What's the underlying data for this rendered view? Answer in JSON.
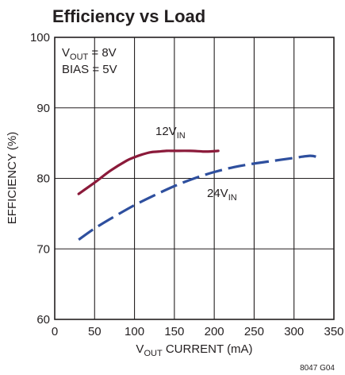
{
  "chart_data": {
    "type": "line",
    "title": "Efficiency vs Load",
    "xlabel": {
      "main": "V",
      "sub": "OUT",
      "rest": " CURRENT (mA)"
    },
    "ylabel": "EFFICIENCY (%)",
    "xlim": [
      0,
      350
    ],
    "ylim": [
      60,
      100
    ],
    "xticks": [
      "0",
      "50",
      "100",
      "150",
      "200",
      "250",
      "300",
      "350"
    ],
    "yticks": [
      "60",
      "70",
      "80",
      "90",
      "100"
    ],
    "grid": true,
    "conditions": [
      {
        "main": "V",
        "sub": "OUT",
        "rest": " = 8V"
      },
      {
        "main": "BIAS = 5V",
        "sub": "",
        "rest": ""
      }
    ],
    "series": [
      {
        "name": "12VIN",
        "label": {
          "main": "12V",
          "sub": "IN"
        },
        "color": "#8b1a3a",
        "style": "solid",
        "x": [
          30,
          50,
          70,
          90,
          100,
          110,
          120,
          130,
          140,
          150,
          170,
          190,
          205
        ],
        "y": [
          77.8,
          79.4,
          81.1,
          82.5,
          83.0,
          83.4,
          83.7,
          83.8,
          83.9,
          83.9,
          83.9,
          83.8,
          83.9
        ]
      },
      {
        "name": "24VIN",
        "label": {
          "main": "24V",
          "sub": "IN"
        },
        "color": "#2e4f9e",
        "style": "dashed",
        "x": [
          30,
          50,
          75,
          100,
          125,
          150,
          175,
          200,
          225,
          250,
          275,
          300,
          320,
          330
        ],
        "y": [
          71.3,
          72.9,
          74.6,
          76.2,
          77.6,
          78.9,
          80.0,
          80.9,
          81.6,
          82.1,
          82.5,
          82.9,
          83.2,
          83.0
        ]
      }
    ],
    "figure_code": "8047 G04"
  }
}
